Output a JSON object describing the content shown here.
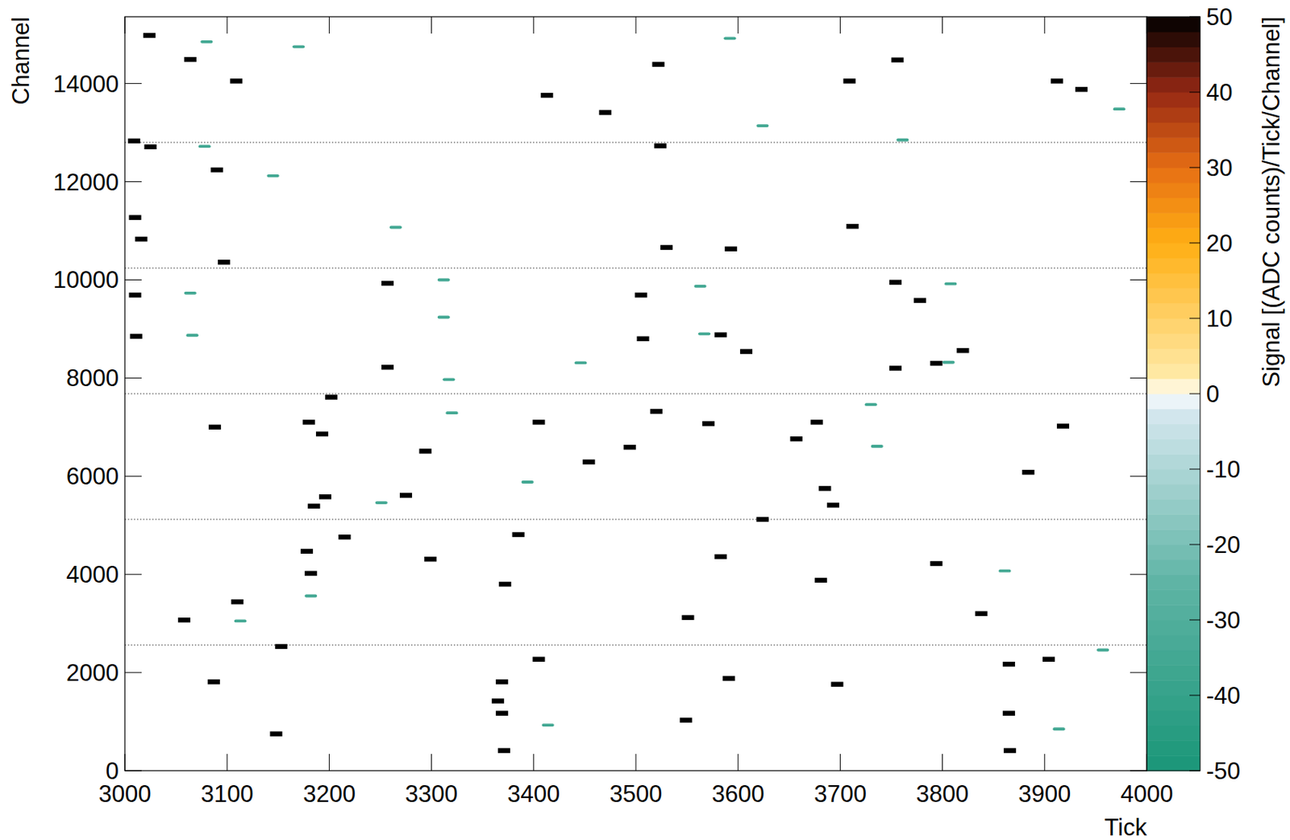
{
  "chart_data": {
    "type": "heatmap",
    "x_label": "Tick",
    "y_label": "Channel",
    "xlim": [
      3000,
      4000
    ],
    "ylim": [
      0,
      15360
    ],
    "xticks": [
      3000,
      3100,
      3200,
      3300,
      3400,
      3500,
      3600,
      3700,
      3800,
      3900,
      4000
    ],
    "yticks": [
      0,
      2000,
      4000,
      6000,
      8000,
      10000,
      12000,
      14000
    ],
    "colorbar": {
      "label": "Signal [(ADC counts)/Tick/Channel]",
      "zlim": [
        -50,
        50
      ],
      "zticks": [
        -50,
        -40,
        -30,
        -20,
        -10,
        0,
        10,
        20,
        30,
        40,
        50
      ]
    },
    "boundaries": [
      2560,
      5120,
      7680,
      10240,
      12800
    ],
    "cells": [
      [
        3024,
        14980,
        50
      ],
      [
        3064,
        14490,
        50
      ],
      [
        3109,
        14050,
        50
      ],
      [
        3009,
        12830,
        50
      ],
      [
        3025,
        12710,
        50
      ],
      [
        3090,
        12240,
        50
      ],
      [
        3010,
        11270,
        50
      ],
      [
        3016,
        10830,
        50
      ],
      [
        3097,
        10360,
        50
      ],
      [
        3257,
        9930,
        50
      ],
      [
        3010,
        9690,
        50
      ],
      [
        3011,
        8850,
        50
      ],
      [
        3257,
        8220,
        50
      ],
      [
        3202,
        7610,
        50
      ],
      [
        3088,
        7000,
        50
      ],
      [
        3180,
        7100,
        50
      ],
      [
        3193,
        6860,
        50
      ],
      [
        3196,
        5580,
        50
      ],
      [
        3185,
        5390,
        50
      ],
      [
        3215,
        4760,
        50
      ],
      [
        3178,
        4470,
        50
      ],
      [
        3182,
        4020,
        50
      ],
      [
        3110,
        3440,
        50
      ],
      [
        3058,
        3070,
        50
      ],
      [
        3153,
        2530,
        50
      ],
      [
        3148,
        750,
        50
      ],
      [
        3087,
        1810,
        50
      ],
      [
        3369,
        1810,
        50
      ],
      [
        3369,
        1170,
        50
      ],
      [
        3371,
        410,
        50
      ],
      [
        3405,
        2270,
        50
      ],
      [
        3413,
        13760,
        50
      ],
      [
        3470,
        13410,
        50
      ],
      [
        3522,
        14390,
        50
      ],
      [
        3524,
        12730,
        50
      ],
      [
        3530,
        10660,
        50
      ],
      [
        3507,
        8800,
        50
      ],
      [
        3505,
        9690,
        50
      ],
      [
        3583,
        8880,
        50
      ],
      [
        3608,
        8540,
        50
      ],
      [
        3593,
        10630,
        50
      ],
      [
        3520,
        7320,
        50
      ],
      [
        3571,
        7070,
        50
      ],
      [
        3494,
        6590,
        50
      ],
      [
        3454,
        6290,
        50
      ],
      [
        3624,
        5120,
        50
      ],
      [
        3583,
        4360,
        50
      ],
      [
        3551,
        3120,
        50
      ],
      [
        3591,
        1880,
        50
      ],
      [
        3549,
        1030,
        50
      ],
      [
        3677,
        7100,
        50
      ],
      [
        3685,
        5750,
        50
      ],
      [
        3693,
        5410,
        50
      ],
      [
        3681,
        3880,
        50
      ],
      [
        3709,
        14050,
        50
      ],
      [
        3712,
        11090,
        50
      ],
      [
        3754,
        9950,
        50
      ],
      [
        3754,
        8200,
        50
      ],
      [
        3778,
        9580,
        50
      ],
      [
        3794,
        8300,
        50
      ],
      [
        3794,
        4220,
        50
      ],
      [
        3820,
        8560,
        50
      ],
      [
        3865,
        2170,
        50
      ],
      [
        3865,
        1170,
        50
      ],
      [
        3866,
        410,
        50
      ],
      [
        3904,
        2270,
        50
      ],
      [
        3912,
        14050,
        50
      ],
      [
        3936,
        13880,
        50
      ],
      [
        3918,
        7020,
        50
      ],
      [
        3884,
        6080,
        50
      ],
      [
        3697,
        1760,
        50
      ],
      [
        3838,
        3200,
        50
      ],
      [
        3756,
        14480,
        50
      ],
      [
        3657,
        6760,
        50
      ],
      [
        3294,
        6510,
        50
      ],
      [
        3275,
        5610,
        50
      ],
      [
        3299,
        4310,
        50
      ],
      [
        3372,
        3800,
        50
      ],
      [
        3385,
        4810,
        50
      ],
      [
        3405,
        7100,
        50
      ],
      [
        3365,
        1420,
        50
      ],
      [
        3080,
        14830,
        -35
      ],
      [
        3170,
        14730,
        -35
      ],
      [
        3078,
        12700,
        -35
      ],
      [
        3145,
        12100,
        -35
      ],
      [
        3265,
        11050,
        -35
      ],
      [
        3064,
        9710,
        -35
      ],
      [
        3312,
        9980,
        -35
      ],
      [
        3312,
        9220,
        -35
      ],
      [
        3066,
        8850,
        -35
      ],
      [
        3317,
        7950,
        -35
      ],
      [
        3320,
        7270,
        -35
      ],
      [
        3394,
        5860,
        -35
      ],
      [
        3251,
        5440,
        -35
      ],
      [
        3113,
        3030,
        -35
      ],
      [
        3414,
        910,
        -35
      ],
      [
        3563,
        9850,
        -35
      ],
      [
        3567,
        8880,
        -35
      ],
      [
        3808,
        9900,
        -35
      ],
      [
        3806,
        8300,
        -35
      ],
      [
        3730,
        7440,
        -35
      ],
      [
        3736,
        6590,
        -35
      ],
      [
        3761,
        12830,
        -35
      ],
      [
        3861,
        4050,
        -35
      ],
      [
        3914,
        830,
        -35
      ],
      [
        3957,
        2440,
        -35
      ],
      [
        3973,
        13460,
        -35
      ],
      [
        3592,
        14900,
        -35
      ],
      [
        3446,
        8290,
        -35
      ],
      [
        3182,
        3540,
        -35
      ],
      [
        3624,
        13120,
        -35
      ]
    ]
  }
}
